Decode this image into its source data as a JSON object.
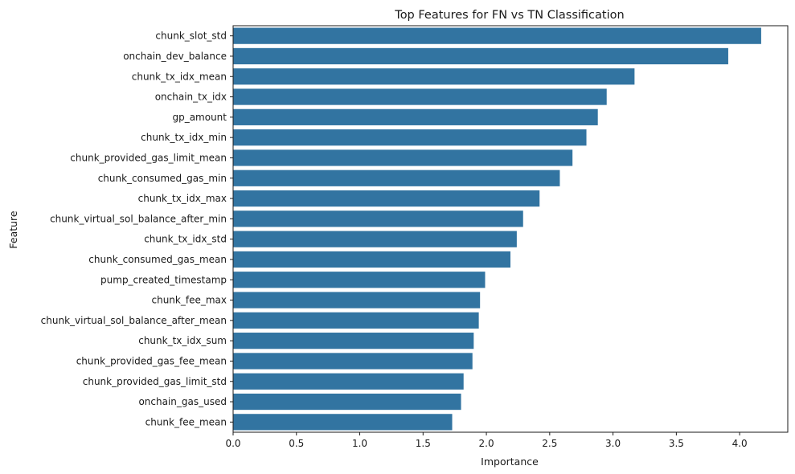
{
  "chart_data": {
    "type": "bar",
    "orientation": "horizontal",
    "title": "Top Features for FN vs TN Classification",
    "xlabel": "Importance",
    "ylabel": "Feature",
    "xlim": [
      0,
      4.38
    ],
    "xticks": [
      0.0,
      0.5,
      1.0,
      1.5,
      2.0,
      2.5,
      3.0,
      3.5,
      4.0
    ],
    "xtick_labels": [
      "0.0",
      "0.5",
      "1.0",
      "1.5",
      "2.0",
      "2.5",
      "3.0",
      "3.5",
      "4.0"
    ],
    "grid": false,
    "bar_color": "#3274a1",
    "categories": [
      "chunk_slot_std",
      "onchain_dev_balance",
      "chunk_tx_idx_mean",
      "onchain_tx_idx",
      "gp_amount",
      "chunk_tx_idx_min",
      "chunk_provided_gas_limit_mean",
      "chunk_consumed_gas_min",
      "chunk_tx_idx_max",
      "chunk_virtual_sol_balance_after_min",
      "chunk_tx_idx_std",
      "chunk_consumed_gas_mean",
      "pump_created_timestamp",
      "chunk_fee_max",
      "chunk_virtual_sol_balance_after_mean",
      "chunk_tx_idx_sum",
      "chunk_provided_gas_fee_mean",
      "chunk_provided_gas_limit_std",
      "onchain_gas_used",
      "chunk_fee_mean"
    ],
    "values": [
      4.17,
      3.91,
      3.17,
      2.95,
      2.88,
      2.79,
      2.68,
      2.58,
      2.42,
      2.29,
      2.24,
      2.19,
      1.99,
      1.95,
      1.94,
      1.9,
      1.89,
      1.82,
      1.8,
      1.73
    ]
  }
}
